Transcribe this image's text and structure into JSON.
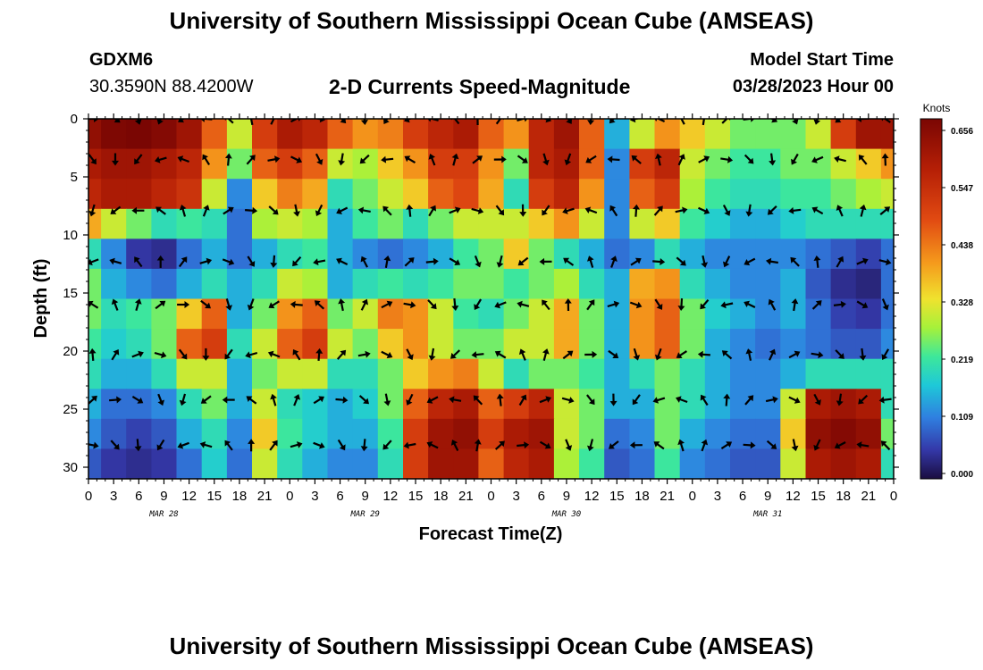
{
  "header": {
    "title": "University of Southern Mississippi Ocean Cube (AMSEAS)",
    "station": "GDXM6",
    "coords": "30.3590N  88.4200W",
    "subtitle": "2-D Currents Speed-Magnitude",
    "start_label": "Model Start Time",
    "start_value": "03/28/2023 Hour 00"
  },
  "footer": {
    "title": "University of Southern Mississippi Ocean Cube (AMSEAS)"
  },
  "chart_data": {
    "type": "heatmap",
    "xlabel": "Forecast Time(Z)",
    "ylabel": "Depth (ft)",
    "x_tick_labels": [
      "0",
      "3",
      "6",
      "9",
      "12",
      "15",
      "18",
      "21",
      "0",
      "3",
      "6",
      "9",
      "12",
      "15",
      "18",
      "21",
      "0",
      "3",
      "6",
      "9",
      "12",
      "15",
      "18",
      "21",
      "0",
      "3",
      "6",
      "9",
      "12",
      "15",
      "18",
      "21",
      "0"
    ],
    "date_labels": [
      {
        "label": "MAR 28",
        "hour": 9
      },
      {
        "label": "MAR 29",
        "hour": 33
      },
      {
        "label": "MAR 30",
        "hour": 57
      },
      {
        "label": "MAR 31",
        "hour": 81
      }
    ],
    "xlim": [
      0,
      96
    ],
    "ylim": [
      0,
      31
    ],
    "y_ticks": [
      0,
      5,
      10,
      15,
      20,
      25,
      30
    ],
    "colorbar": {
      "title": "Knots",
      "ticks": [
        "0.656",
        "0.547",
        "0.438",
        "0.328",
        "0.219",
        "0.109",
        "0.000"
      ],
      "min": 0.0,
      "max": 0.656
    },
    "arrow_depths_ft": [
      0,
      3.5,
      7.9,
      12.3,
      16,
      20.3,
      24.2,
      28.1
    ],
    "hours": [
      0,
      3,
      6,
      9,
      12,
      15,
      18,
      21,
      24,
      27,
      30,
      33,
      36,
      39,
      42,
      45,
      48,
      51,
      54,
      57,
      60,
      63,
      66,
      69,
      72,
      75,
      78,
      81,
      84,
      87,
      90,
      93,
      96
    ],
    "speed_knots": [
      [
        0.62,
        0.65,
        0.66,
        0.64,
        0.6,
        0.45,
        0.3,
        0.5,
        0.58,
        0.55,
        0.45,
        0.4,
        0.42,
        0.5,
        0.55,
        0.58,
        0.45,
        0.4,
        0.55,
        0.6,
        0.45,
        0.15,
        0.3,
        0.4,
        0.35,
        0.3,
        0.25,
        0.25,
        0.25,
        0.3,
        0.5,
        0.6,
        0.6
      ],
      [
        0.58,
        0.6,
        0.6,
        0.58,
        0.55,
        0.4,
        0.25,
        0.45,
        0.5,
        0.45,
        0.3,
        0.28,
        0.35,
        0.4,
        0.5,
        0.5,
        0.4,
        0.25,
        0.55,
        0.58,
        0.45,
        0.12,
        0.5,
        0.55,
        0.3,
        0.25,
        0.22,
        0.22,
        0.25,
        0.25,
        0.3,
        0.35,
        0.4
      ],
      [
        0.55,
        0.58,
        0.58,
        0.55,
        0.52,
        0.3,
        0.12,
        0.35,
        0.42,
        0.38,
        0.2,
        0.25,
        0.3,
        0.35,
        0.45,
        0.48,
        0.38,
        0.2,
        0.5,
        0.55,
        0.4,
        0.12,
        0.45,
        0.5,
        0.28,
        0.22,
        0.2,
        0.2,
        0.22,
        0.22,
        0.25,
        0.28,
        0.3
      ],
      [
        0.38,
        0.3,
        0.25,
        0.2,
        0.22,
        0.2,
        0.1,
        0.28,
        0.3,
        0.28,
        0.15,
        0.22,
        0.25,
        0.2,
        0.25,
        0.3,
        0.3,
        0.3,
        0.35,
        0.4,
        0.3,
        0.12,
        0.3,
        0.35,
        0.22,
        0.18,
        0.15,
        0.15,
        0.18,
        0.2,
        0.2,
        0.2,
        0.2
      ],
      [
        0.2,
        0.12,
        0.05,
        0.04,
        0.1,
        0.15,
        0.1,
        0.15,
        0.2,
        0.22,
        0.15,
        0.12,
        0.1,
        0.12,
        0.15,
        0.22,
        0.25,
        0.35,
        0.25,
        0.2,
        0.15,
        0.1,
        0.12,
        0.2,
        0.15,
        0.12,
        0.12,
        0.12,
        0.12,
        0.1,
        0.08,
        0.06,
        0.1
      ],
      [
        0.25,
        0.15,
        0.12,
        0.1,
        0.15,
        0.2,
        0.15,
        0.2,
        0.3,
        0.28,
        0.15,
        0.2,
        0.22,
        0.2,
        0.22,
        0.25,
        0.25,
        0.22,
        0.25,
        0.28,
        0.2,
        0.15,
        0.38,
        0.4,
        0.2,
        0.15,
        0.12,
        0.12,
        0.15,
        0.08,
        0.04,
        0.03,
        0.1
      ],
      [
        0.25,
        0.2,
        0.22,
        0.25,
        0.35,
        0.45,
        0.15,
        0.25,
        0.4,
        0.45,
        0.25,
        0.3,
        0.42,
        0.4,
        0.3,
        0.22,
        0.2,
        0.25,
        0.3,
        0.38,
        0.25,
        0.15,
        0.4,
        0.45,
        0.25,
        0.18,
        0.15,
        0.12,
        0.15,
        0.1,
        0.06,
        0.05,
        0.1
      ],
      [
        0.22,
        0.18,
        0.2,
        0.25,
        0.45,
        0.5,
        0.2,
        0.3,
        0.45,
        0.5,
        0.3,
        0.25,
        0.35,
        0.4,
        0.3,
        0.25,
        0.25,
        0.3,
        0.3,
        0.38,
        0.25,
        0.15,
        0.4,
        0.45,
        0.25,
        0.15,
        0.12,
        0.1,
        0.12,
        0.1,
        0.08,
        0.08,
        0.12
      ],
      [
        0.2,
        0.15,
        0.15,
        0.2,
        0.3,
        0.3,
        0.15,
        0.25,
        0.3,
        0.3,
        0.2,
        0.2,
        0.25,
        0.35,
        0.4,
        0.42,
        0.3,
        0.2,
        0.25,
        0.25,
        0.22,
        0.15,
        0.2,
        0.25,
        0.2,
        0.15,
        0.12,
        0.12,
        0.15,
        0.2,
        0.2,
        0.2,
        0.2
      ],
      [
        0.15,
        0.1,
        0.1,
        0.12,
        0.2,
        0.25,
        0.15,
        0.3,
        0.2,
        0.18,
        0.15,
        0.18,
        0.25,
        0.45,
        0.55,
        0.58,
        0.45,
        0.5,
        0.55,
        0.3,
        0.25,
        0.15,
        0.15,
        0.25,
        0.2,
        0.15,
        0.12,
        0.12,
        0.3,
        0.58,
        0.6,
        0.58,
        0.2
      ],
      [
        0.12,
        0.08,
        0.06,
        0.08,
        0.15,
        0.2,
        0.12,
        0.35,
        0.22,
        0.18,
        0.15,
        0.15,
        0.22,
        0.5,
        0.6,
        0.62,
        0.5,
        0.58,
        0.6,
        0.3,
        0.25,
        0.1,
        0.12,
        0.25,
        0.15,
        0.12,
        0.1,
        0.1,
        0.35,
        0.62,
        0.64,
        0.62,
        0.25
      ],
      [
        0.08,
        0.05,
        0.04,
        0.05,
        0.1,
        0.18,
        0.1,
        0.3,
        0.2,
        0.15,
        0.12,
        0.12,
        0.2,
        0.5,
        0.6,
        0.6,
        0.45,
        0.55,
        0.58,
        0.28,
        0.22,
        0.08,
        0.1,
        0.22,
        0.12,
        0.1,
        0.08,
        0.08,
        0.3,
        0.58,
        0.6,
        0.58,
        0.2
      ]
    ]
  }
}
